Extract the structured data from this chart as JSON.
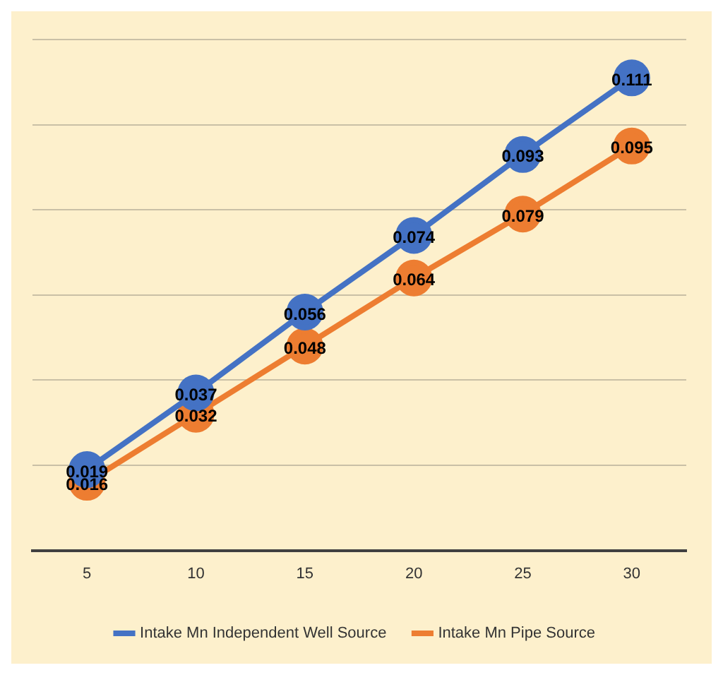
{
  "chart_data": {
    "type": "line",
    "categories": [
      "5",
      "10",
      "15",
      "20",
      "25",
      "30"
    ],
    "series": [
      {
        "name": "Intake Mn Independent Well Source",
        "color": "#4472c4",
        "values": [
          0.019,
          0.037,
          0.056,
          0.074,
          0.093,
          0.111
        ]
      },
      {
        "name": "Intake Mn Pipe Source",
        "color": "#ed7d31",
        "values": [
          0.016,
          0.032,
          0.048,
          0.064,
          0.079,
          0.095
        ]
      }
    ],
    "ylim": [
      0,
      0.12
    ],
    "yticks": [
      {
        "value": 0,
        "label": null
      },
      {
        "value": 0.02,
        "label": null
      },
      {
        "value": 0.04,
        "label": null
      },
      {
        "value": 0.06,
        "label": null
      },
      {
        "value": 0.08,
        "label": null
      },
      {
        "value": 0.1,
        "label": null
      },
      {
        "value": 0.12,
        "label": null
      }
    ],
    "tick_labels": "x",
    "grid": "y",
    "legend": "bottom",
    "marker": "circle",
    "line_style": "solid",
    "data_labels": true
  }
}
